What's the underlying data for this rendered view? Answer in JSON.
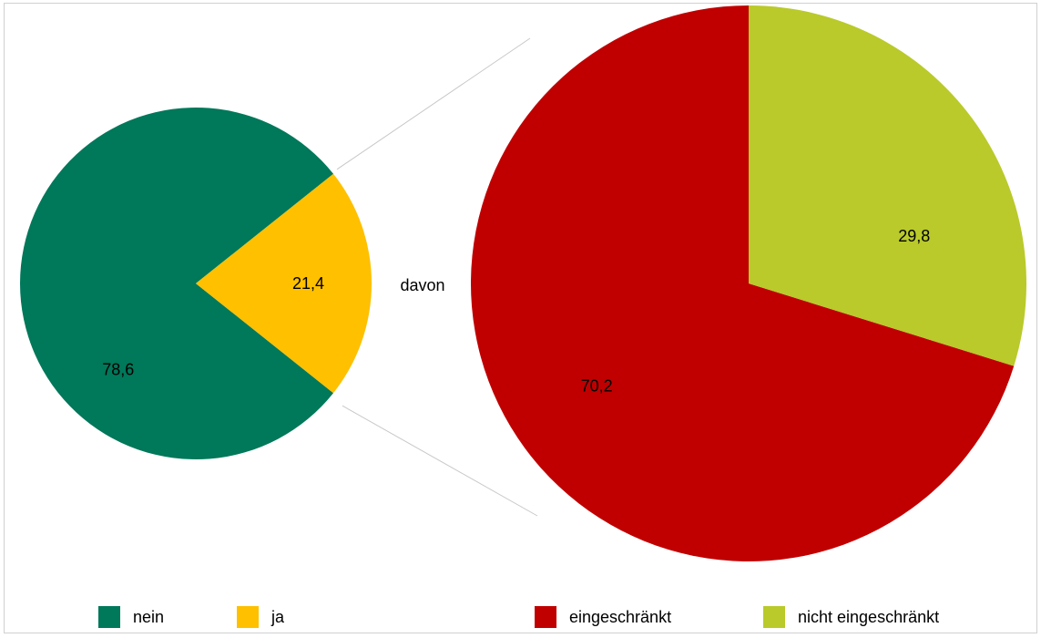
{
  "chart_data": {
    "type": "pie",
    "connector_label": "davon",
    "charts": [
      {
        "type": "pie",
        "slices": [
          {
            "label": "nein",
            "value": 78.6,
            "display": "78,6",
            "color": "#00785A"
          },
          {
            "label": "ja",
            "value": 21.4,
            "display": "21,4",
            "color": "#FFC000"
          }
        ]
      },
      {
        "type": "pie",
        "slices": [
          {
            "label": "eingeschränkt",
            "value": 70.2,
            "display": "70,2",
            "color": "#C00000"
          },
          {
            "label": "nicht eingeschränkt",
            "value": 29.8,
            "display": "29,8",
            "color": "#B9CA2A"
          }
        ]
      }
    ],
    "legend_position": "bottom"
  }
}
